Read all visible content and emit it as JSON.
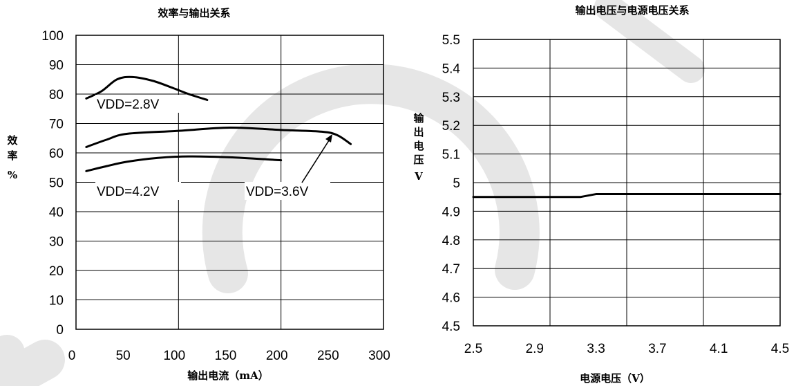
{
  "chart_data": [
    {
      "type": "line",
      "title": "效率与输出关系",
      "xlabel": "输出电流（mA）",
      "ylabel": [
        "效",
        "率",
        "%"
      ],
      "xlim": [
        0,
        300
      ],
      "ylim": [
        0,
        100
      ],
      "x_ticks": [
        "0",
        "50",
        "100",
        "150",
        "200",
        "250",
        "300"
      ],
      "y_ticks": [
        "0",
        "10",
        "20",
        "30",
        "40",
        "50",
        "60",
        "70",
        "80",
        "90",
        "100"
      ],
      "grid": true,
      "series": [
        {
          "name": "VDD=2.8V",
          "points": [
            [
              10,
              78.5
            ],
            [
              25,
              81
            ],
            [
              40,
              85
            ],
            [
              55,
              85.8
            ],
            [
              75,
              84.5
            ],
            [
              95,
              82
            ],
            [
              110,
              80
            ],
            [
              128,
              78
            ]
          ]
        },
        {
          "name": "VDD=3.6V",
          "points": [
            [
              10,
              62
            ],
            [
              30,
              64.5
            ],
            [
              50,
              66.5
            ],
            [
              100,
              67.5
            ],
            [
              150,
              68.6
            ],
            [
              200,
              67.8
            ],
            [
              240,
              67.2
            ],
            [
              255,
              66
            ],
            [
              268,
              63
            ]
          ]
        },
        {
          "name": "VDD=4.2V",
          "points": [
            [
              10,
              53.8
            ],
            [
              30,
              55.5
            ],
            [
              50,
              57
            ],
            [
              80,
              58.3
            ],
            [
              110,
              58.8
            ],
            [
              150,
              58.5
            ],
            [
              200,
              57.5
            ]
          ]
        }
      ],
      "annotations": [
        "VDD=2.8V",
        "VDD=4.2V",
        "VDD=3.6V"
      ]
    },
    {
      "type": "line",
      "title": "输出电压与电源电压关系",
      "xlabel": "电源电压（V）",
      "ylabel": [
        "输",
        "出",
        "电",
        "压",
        "V"
      ],
      "xlim": [
        2.5,
        4.5
      ],
      "ylim": [
        4.5,
        5.5
      ],
      "x_ticks": [
        "2.5",
        "2.9",
        "3.3",
        "3.7",
        "4.1",
        "4.5"
      ],
      "y_ticks": [
        "4.5",
        "4.6",
        "4.7",
        "4.8",
        "4.9",
        "5",
        "5.1",
        "5.2",
        "5.3",
        "5.4",
        "5.5"
      ],
      "grid": true,
      "series": [
        {
          "points": [
            [
              2.5,
              4.95
            ],
            [
              3.2,
              4.95
            ],
            [
              3.3,
              4.96
            ],
            [
              4.5,
              4.96
            ]
          ]
        }
      ]
    }
  ],
  "watermark": {
    "color": "#e6e6e6"
  }
}
